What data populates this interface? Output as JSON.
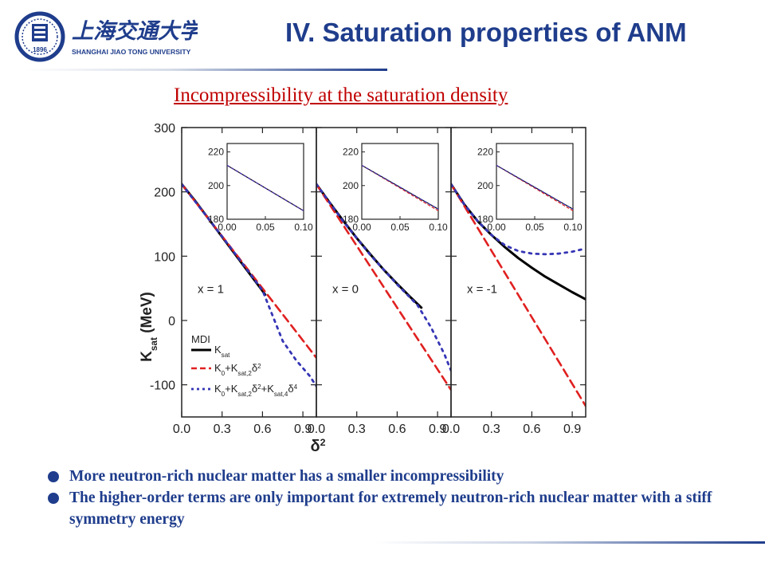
{
  "header": {
    "university_name_zh": "上海交通大学",
    "university_name_en": "SHANGHAI JIAO TONG UNIVERSITY",
    "seal_year": "1896",
    "title": "IV. Saturation properties of ANM",
    "title_color": "#1f3d8c"
  },
  "subtitle": "Incompressibility at the saturation density",
  "subtitle_color": "#c00000",
  "chart_data": {
    "type": "line",
    "ylabel_main": "K",
    "ylabel_sub": "sat",
    "ylabel_unit": "(MeV)",
    "xlabel_main": "δ",
    "xlabel_sup": "2",
    "ylim": [
      -150,
      300
    ],
    "y_ticks": [
      "300",
      "200",
      "100",
      "0",
      "-100"
    ],
    "xlim": [
      0,
      1.0
    ],
    "x_ticks": [
      "0.0",
      "0.3",
      "0.6",
      "0.9"
    ],
    "inset_xlim": [
      0,
      0.1
    ],
    "inset_ylim": [
      180,
      225
    ],
    "inset_y_ticks": [
      "220",
      "200",
      "180"
    ],
    "inset_x_ticks": [
      "0.00",
      "0.05",
      "0.10"
    ],
    "legend_title": "MDI",
    "legend": [
      {
        "key": "sat",
        "parts": [
          [
            "K",
            ""
          ],
          [
            "sat",
            "sub"
          ]
        ]
      },
      {
        "key": "k2",
        "parts": [
          [
            "K",
            ""
          ],
          [
            "0",
            "sub"
          ],
          [
            "+K",
            ""
          ],
          [
            "sat,2",
            "sub"
          ],
          [
            "δ",
            ""
          ],
          [
            "2",
            "sup"
          ]
        ]
      },
      {
        "key": "k4",
        "parts": [
          [
            "K",
            ""
          ],
          [
            "0",
            "sub"
          ],
          [
            "+K",
            ""
          ],
          [
            "sat,2",
            "sub"
          ],
          [
            "δ",
            ""
          ],
          [
            "2",
            "sup"
          ],
          [
            "+K",
            ""
          ],
          [
            "sat,4",
            "sub"
          ],
          [
            "δ",
            ""
          ],
          [
            "4",
            "sup"
          ]
        ]
      }
    ],
    "styles": {
      "sat": {
        "color": "#000000",
        "dash": "",
        "width": 3
      },
      "k2": {
        "color": "#e02020",
        "dash": "10,6",
        "width": 2.6
      },
      "k4": {
        "color": "#3535b5",
        "dash": "3,6",
        "width": 2.8
      }
    },
    "panels": [
      {
        "label": "x = 1",
        "series": {
          "sat": [
            [
              0,
              212
            ],
            [
              0.1,
              186
            ],
            [
              0.2,
              158
            ],
            [
              0.3,
              130
            ],
            [
              0.4,
              102
            ],
            [
              0.5,
              74
            ],
            [
              0.6,
              46
            ],
            [
              0.62,
              40
            ]
          ],
          "k2": [
            [
              0,
              212
            ],
            [
              0.2,
              158
            ],
            [
              0.4,
              104
            ],
            [
              0.6,
              50
            ],
            [
              0.8,
              -4
            ],
            [
              0.9,
              -31
            ],
            [
              1.0,
              -58
            ]
          ],
          "k4": [
            [
              0,
              212
            ],
            [
              0.2,
              158
            ],
            [
              0.4,
              103
            ],
            [
              0.6,
              47
            ],
            [
              0.75,
              -32
            ],
            [
              0.85,
              -62
            ],
            [
              0.95,
              -86
            ],
            [
              1.0,
              -102
            ]
          ]
        },
        "inset": {
          "sat": [
            [
              0,
              212
            ],
            [
              0.1,
              185
            ]
          ],
          "k2": [
            [
              0,
              212
            ],
            [
              0.1,
              185
            ]
          ],
          "k4": [
            [
              0,
              212
            ],
            [
              0.1,
              185
            ]
          ]
        }
      },
      {
        "label": "x = 0",
        "series": {
          "sat": [
            [
              0,
              212
            ],
            [
              0.1,
              183
            ],
            [
              0.2,
              155
            ],
            [
              0.3,
              128
            ],
            [
              0.4,
              103
            ],
            [
              0.5,
              79
            ],
            [
              0.6,
              57
            ],
            [
              0.7,
              36
            ],
            [
              0.78,
              20
            ]
          ],
          "k2": [
            [
              0,
              212
            ],
            [
              0.2,
              148
            ],
            [
              0.4,
              84
            ],
            [
              0.6,
              20
            ],
            [
              0.8,
              -44
            ],
            [
              1.0,
              -108
            ]
          ],
          "k4": [
            [
              0,
              212
            ],
            [
              0.2,
              154
            ],
            [
              0.4,
              102
            ],
            [
              0.6,
              56
            ],
            [
              0.75,
              24
            ],
            [
              0.85,
              -10
            ],
            [
              0.95,
              -52
            ],
            [
              1.0,
              -78
            ]
          ]
        },
        "inset": {
          "sat": [
            [
              0,
              212
            ],
            [
              0.1,
              186
            ]
          ],
          "k2": [
            [
              0,
              212
            ],
            [
              0.1,
              185
            ]
          ],
          "k4": [
            [
              0,
              212
            ],
            [
              0.1,
              186
            ]
          ]
        }
      },
      {
        "label": "x = -1",
        "series": {
          "sat": [
            [
              0,
              212
            ],
            [
              0.1,
              180
            ],
            [
              0.2,
              154
            ],
            [
              0.3,
              133
            ],
            [
              0.4,
              114
            ],
            [
              0.5,
              97
            ],
            [
              0.6,
              82
            ],
            [
              0.7,
              68
            ],
            [
              0.8,
              56
            ],
            [
              0.9,
              44
            ],
            [
              1.0,
              33
            ]
          ],
          "k2": [
            [
              0,
              212
            ],
            [
              0.2,
              143
            ],
            [
              0.4,
              74
            ],
            [
              0.6,
              5
            ],
            [
              0.8,
              -64
            ],
            [
              1.0,
              -133
            ]
          ],
          "k4": [
            [
              0,
              212
            ],
            [
              0.1,
              180
            ],
            [
              0.2,
              154
            ],
            [
              0.3,
              133
            ],
            [
              0.4,
              117
            ],
            [
              0.5,
              108
            ],
            [
              0.6,
              104
            ],
            [
              0.7,
              103
            ],
            [
              0.8,
              104
            ],
            [
              0.9,
              107
            ],
            [
              1.0,
              112
            ]
          ]
        },
        "inset": {
          "sat": [
            [
              0,
              212
            ],
            [
              0.1,
              186
            ]
          ],
          "k2": [
            [
              0,
              212
            ],
            [
              0.1,
              185
            ]
          ],
          "k4": [
            [
              0,
              212
            ],
            [
              0.1,
              186
            ]
          ]
        }
      }
    ]
  },
  "bullets": [
    {
      "text": "More neutron-rich nuclear matter has a smaller incompressibility"
    },
    {
      "text": "The higher-order terms are only important for extremely neutron-rich nuclear matter with a stiff symmetry energy"
    }
  ]
}
